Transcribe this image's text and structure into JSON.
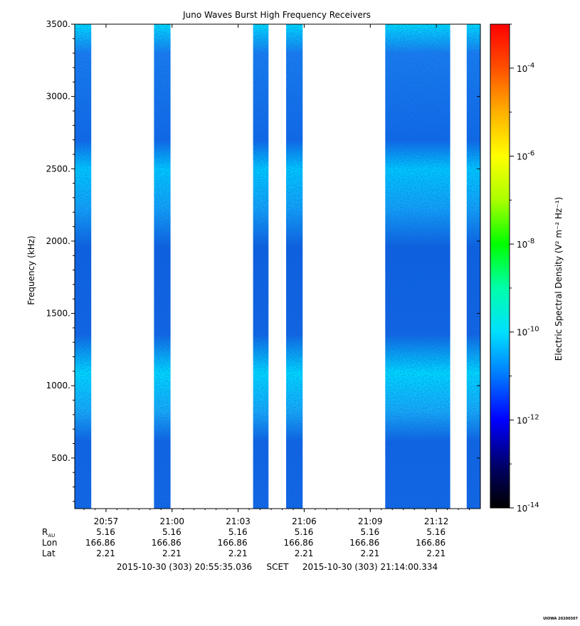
{
  "chart_data": {
    "type": "heatmap",
    "title": "Juno Waves Burst High Frequency Receivers",
    "ylabel": "Frequency (kHz)",
    "colorbar_label": "Electric Spectral Density (V² m⁻² Hz⁻¹)",
    "ylim": [
      150,
      3500
    ],
    "y_ticks": [
      {
        "value": 3500,
        "label": "3500."
      },
      {
        "value": 3000,
        "label": "3000."
      },
      {
        "value": 2500,
        "label": "2500."
      },
      {
        "value": 2000,
        "label": "2000."
      },
      {
        "value": 1500,
        "label": "1500."
      },
      {
        "value": 1000,
        "label": "1000."
      },
      {
        "value": 500,
        "label": "500."
      }
    ],
    "x_ticks": [
      "20:57",
      "21:00",
      "21:03",
      "21:06",
      "21:09",
      "21:12"
    ],
    "x_range_minutes": [
      0,
      18.42
    ],
    "x_tick_minutes": [
      1.42,
      4.42,
      7.42,
      10.42,
      13.42,
      16.42
    ],
    "data_blocks_minutes": [
      [
        0,
        0.75
      ],
      [
        3.6,
        4.35
      ],
      [
        8.1,
        8.8
      ],
      [
        9.6,
        10.35
      ],
      [
        14.1,
        17.05
      ],
      [
        17.8,
        18.42
      ]
    ],
    "colorbar": {
      "scale": "log",
      "min_exponent": -14,
      "max_exponent": -3,
      "tick_exponents": [
        -14,
        -12,
        -10,
        -8,
        -6,
        -4
      ],
      "base": "10",
      "colors": [
        "#000000",
        "#00006e",
        "#0000ff",
        "#0078ff",
        "#00e0ff",
        "#00ffaa",
        "#00ff00",
        "#aaff00",
        "#ffff00",
        "#ffb000",
        "#ff5000",
        "#ff0000"
      ]
    },
    "ephemeris": {
      "rows": [
        "R",
        "Lon",
        "Lat"
      ],
      "r_subscript": "AU",
      "values": {
        "R": [
          "5.16",
          "5.16",
          "5.16",
          "5.16",
          "5.16",
          "5.16"
        ],
        "Lon": [
          "166.86",
          "166.86",
          "166.86",
          "166.86",
          "166.86",
          "166.86"
        ],
        "Lat": [
          "2.21",
          "2.21",
          "2.21",
          "2.21",
          "2.21",
          "2.21"
        ]
      }
    },
    "time_span": {
      "start": "2015-10-30 (303) 20:55:35.036",
      "frame": "SCET",
      "end": "2015-10-30 (303) 21:14:00.334"
    },
    "stamp": "UIOWA 20200307"
  }
}
